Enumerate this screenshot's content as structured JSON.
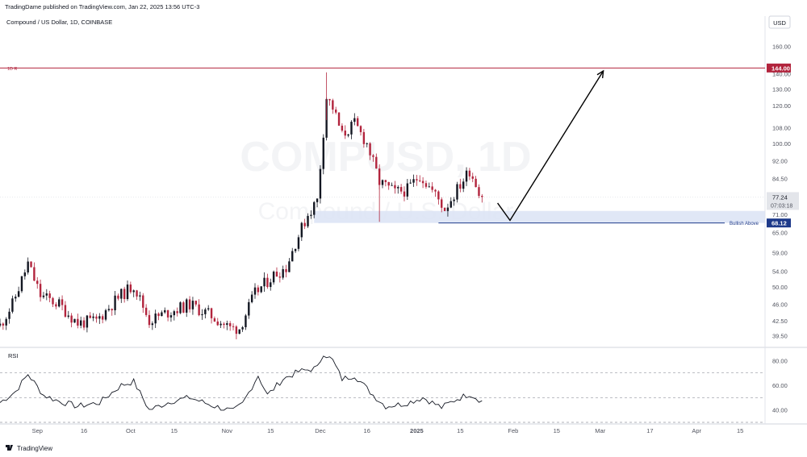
{
  "header": {
    "published_text": "TradingDame published on TradingView.com, Jan 22, 2025 13:56 UTC-3",
    "symbol_title": "Compound / US Dollar, 1D, COINBASE",
    "currency": "USD",
    "watermark_ticker": "COMPUSD, 1D",
    "watermark_name": "Compound / U.S. Dollar"
  },
  "footer": {
    "brand": "TradingView"
  },
  "colors": {
    "up": "#131722",
    "down": "#b2243d",
    "resistance": "#b2243d",
    "support_line": "#1e3a8a",
    "zone": "#dbe3f4",
    "rsi": "#131722",
    "grid": "#e8ebef",
    "text": "#131722",
    "axis_text": "#50535e"
  },
  "chart_data": [
    {
      "type": "candlestick",
      "title": "Compound / US Dollar, 1D, COINBASE",
      "x_tick_labels": [
        "Sep",
        "16",
        "Oct",
        "15",
        "Nov",
        "15",
        "Dec",
        "16",
        "2025",
        "15",
        "Feb",
        "15",
        "Mar",
        "17",
        "Apr",
        "15"
      ],
      "x_range": [
        "2024-08-20",
        "2025-04-23"
      ],
      "y_tick_labels": [
        "160.00",
        "140.00",
        "130.00",
        "120.00",
        "108.00",
        "100.00",
        "92.00",
        "84.50",
        "71.00",
        "65.00",
        "59.00",
        "54.00",
        "50.00",
        "46.00",
        "42.50",
        "39.50"
      ],
      "y_scale": "log",
      "y_range": [
        37.5,
        185
      ],
      "price_labels": [
        {
          "value": "144.00",
          "kind": "resistance"
        },
        {
          "value": "77.24",
          "kind": "last",
          "countdown": "07:03:18"
        },
        {
          "value": "68.12",
          "kind": "support"
        }
      ],
      "horizontal_lines": [
        {
          "name": "1D R",
          "value": 144.0,
          "style": "solid",
          "color": "#b2243d"
        },
        {
          "name": "Bullish Above",
          "value": 68.12,
          "style": "solid",
          "color": "#1e3a8a",
          "from": "2025-01-08"
        }
      ],
      "zone": {
        "from": "2024-11-29",
        "to": "2025-04-23",
        "low": 68.12,
        "high": 72.2
      },
      "projection_path": [
        {
          "date": "2025-01-27",
          "price": 75
        },
        {
          "date": "2025-01-31",
          "price": 69
        },
        {
          "date": "2025-03-02",
          "price": 142
        }
      ],
      "series": [
        {
          "name": "price",
          "close_path": [
            {
              "date": "2024-08-20",
              "price": 41.5
            },
            {
              "date": "2024-08-24",
              "price": 46
            },
            {
              "date": "2024-08-29",
              "price": 56
            },
            {
              "date": "2024-09-02",
              "price": 48
            },
            {
              "date": "2024-09-08",
              "price": 46
            },
            {
              "date": "2024-09-14",
              "price": 42
            },
            {
              "date": "2024-09-20",
              "price": 42.5
            },
            {
              "date": "2024-09-27",
              "price": 47.5
            },
            {
              "date": "2024-10-02",
              "price": 50.5
            },
            {
              "date": "2024-10-07",
              "price": 42.5
            },
            {
              "date": "2024-10-12",
              "price": 44
            },
            {
              "date": "2024-10-20",
              "price": 46
            },
            {
              "date": "2024-10-27",
              "price": 43.5
            },
            {
              "date": "2024-11-02",
              "price": 41
            },
            {
              "date": "2024-11-05",
              "price": 41
            },
            {
              "date": "2024-11-10",
              "price": 48.5
            },
            {
              "date": "2024-11-16",
              "price": 53
            },
            {
              "date": "2024-11-20",
              "price": 55
            },
            {
              "date": "2024-11-23",
              "price": 62
            },
            {
              "date": "2024-11-27",
              "price": 71
            },
            {
              "date": "2024-11-30",
              "price": 76
            },
            {
              "date": "2024-12-03",
              "price": 125
            },
            {
              "date": "2024-12-05",
              "price": 119
            },
            {
              "date": "2024-12-08",
              "price": 104
            },
            {
              "date": "2024-12-12",
              "price": 110
            },
            {
              "date": "2024-12-16",
              "price": 100
            },
            {
              "date": "2024-12-20",
              "price": 83
            },
            {
              "date": "2024-12-25",
              "price": 79
            },
            {
              "date": "2024-12-29",
              "price": 80
            },
            {
              "date": "2025-01-02",
              "price": 86
            },
            {
              "date": "2025-01-07",
              "price": 78
            },
            {
              "date": "2025-01-10",
              "price": 73
            },
            {
              "date": "2025-01-15",
              "price": 82
            },
            {
              "date": "2025-01-18",
              "price": 88
            },
            {
              "date": "2025-01-22",
              "price": 77.24
            }
          ]
        }
      ]
    },
    {
      "type": "line",
      "title": "RSI",
      "y_tick_labels": [
        "80.00",
        "60.00",
        "40.00"
      ],
      "y_range": [
        30,
        90
      ],
      "reference_levels": [
        70,
        50,
        30
      ],
      "series": [
        {
          "name": "RSI",
          "points": [
            {
              "date": "2024-08-20",
              "price": 46
            },
            {
              "date": "2024-08-25",
              "price": 55
            },
            {
              "date": "2024-08-29",
              "price": 69
            },
            {
              "date": "2024-09-03",
              "price": 52
            },
            {
              "date": "2024-09-08",
              "price": 47
            },
            {
              "date": "2024-09-14",
              "price": 43
            },
            {
              "date": "2024-09-21",
              "price": 46
            },
            {
              "date": "2024-09-28",
              "price": 60
            },
            {
              "date": "2024-10-02",
              "price": 63
            },
            {
              "date": "2024-10-07",
              "price": 40
            },
            {
              "date": "2024-10-14",
              "price": 47
            },
            {
              "date": "2024-10-20",
              "price": 50
            },
            {
              "date": "2024-10-28",
              "price": 43
            },
            {
              "date": "2024-11-03",
              "price": 39
            },
            {
              "date": "2024-11-06",
              "price": 45
            },
            {
              "date": "2024-11-11",
              "price": 68
            },
            {
              "date": "2024-11-14",
              "price": 52
            },
            {
              "date": "2024-11-19",
              "price": 65
            },
            {
              "date": "2024-11-24",
              "price": 71
            },
            {
              "date": "2024-11-30",
              "price": 74
            },
            {
              "date": "2024-12-02",
              "price": 86
            },
            {
              "date": "2024-12-05",
              "price": 80
            },
            {
              "date": "2024-12-08",
              "price": 65
            },
            {
              "date": "2024-12-12",
              "price": 68
            },
            {
              "date": "2024-12-18",
              "price": 52
            },
            {
              "date": "2024-12-22",
              "price": 43
            },
            {
              "date": "2024-12-28",
              "price": 45
            },
            {
              "date": "2025-01-03",
              "price": 50
            },
            {
              "date": "2025-01-09",
              "price": 42
            },
            {
              "date": "2025-01-14",
              "price": 49
            },
            {
              "date": "2025-01-18",
              "price": 53
            },
            {
              "date": "2025-01-22",
              "price": 47
            }
          ]
        }
      ]
    }
  ]
}
